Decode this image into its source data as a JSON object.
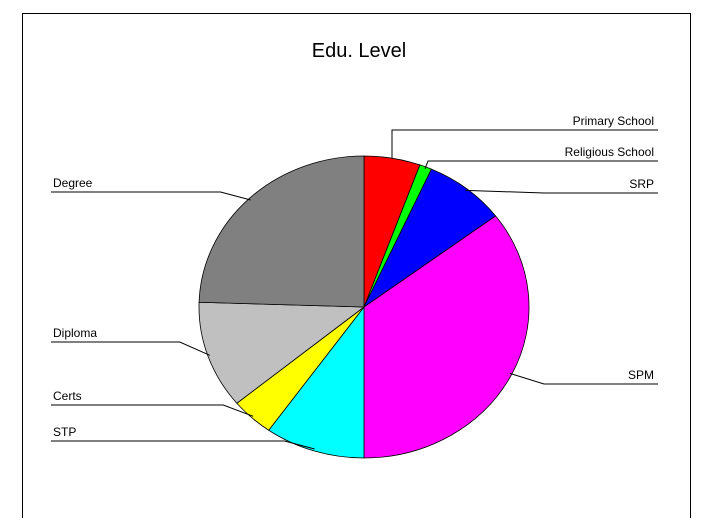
{
  "chart_data": {
    "type": "pie",
    "title": "Edu. Level",
    "slices": [
      {
        "label": "Primary School",
        "value": 5.5,
        "color": "#ff0000"
      },
      {
        "label": "Religious School",
        "value": 1.2,
        "color": "#00ff00"
      },
      {
        "label": "SRP",
        "value": 8.0,
        "color": "#0000ff"
      },
      {
        "label": "SPM",
        "value": 35.3,
        "color": "#ff00ff"
      },
      {
        "label": "STP",
        "value": 9.8,
        "color": "#00ffff"
      },
      {
        "label": "Certs",
        "value": 4.2,
        "color": "#ffff00"
      },
      {
        "label": "Diploma",
        "value": 11.5,
        "color": "#c0c0c0"
      },
      {
        "label": "Degree",
        "value": 24.5,
        "color": "#808080"
      }
    ],
    "legend": "none (slice labels with leader lines)"
  }
}
